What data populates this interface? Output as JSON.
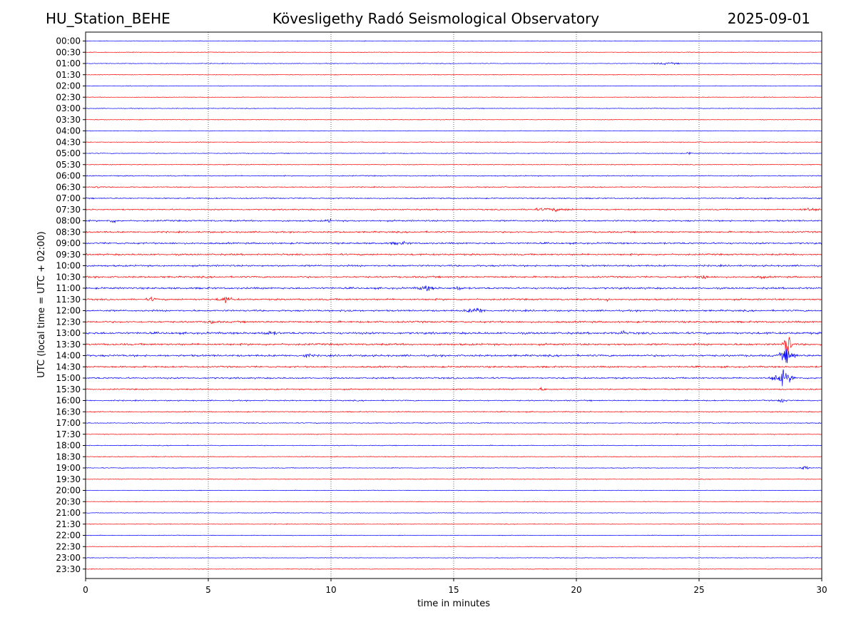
{
  "header": {
    "station": "HU_Station_BEHE",
    "observatory": "Kövesligethy Radó Seismological Observatory",
    "date": "2025-09-01"
  },
  "colors": {
    "trace_a": "#0000ff",
    "trace_b": "#ff0000",
    "axis": "#000000",
    "grid": "#000000"
  },
  "chart_data": {
    "type": "line",
    "title": "Kövesligethy Radó Seismological Observatory",
    "xlabel": "time in minutes",
    "ylabel": "UTC (local time = UTC + 02:00)",
    "xlim": [
      0,
      30
    ],
    "xticks": [
      0,
      5,
      10,
      15,
      20,
      25,
      30
    ],
    "grid": "vertical dotted at 5-minute ticks",
    "series_colors": "alternating blue (full hour) and red (half hour)",
    "rows": [
      "00:00",
      "00:30",
      "01:00",
      "01:30",
      "02:00",
      "02:30",
      "03:00",
      "03:30",
      "04:00",
      "04:30",
      "05:00",
      "05:30",
      "06:00",
      "06:30",
      "07:00",
      "07:30",
      "08:00",
      "08:30",
      "09:00",
      "09:30",
      "10:00",
      "10:30",
      "11:00",
      "11:30",
      "12:00",
      "12:30",
      "13:00",
      "13:30",
      "14:00",
      "14:30",
      "15:00",
      "15:30",
      "16:00",
      "16:30",
      "17:00",
      "17:30",
      "18:00",
      "18:30",
      "19:00",
      "19:30",
      "20:00",
      "20:30",
      "21:00",
      "21:30",
      "22:00",
      "22:30",
      "23:00",
      "23:30"
    ],
    "noise_level": [
      0.5,
      0.5,
      0.5,
      0.5,
      0.5,
      0.5,
      0.5,
      0.5,
      0.5,
      0.6,
      0.6,
      0.6,
      0.8,
      0.8,
      0.9,
      1.0,
      1.2,
      1.2,
      1.3,
      1.3,
      1.3,
      1.3,
      1.4,
      1.3,
      1.3,
      1.4,
      1.6,
      1.5,
      1.5,
      1.3,
      1.2,
      1.0,
      0.9,
      0.8,
      0.7,
      0.6,
      0.6,
      0.6,
      0.6,
      0.5,
      0.5,
      0.5,
      0.5,
      0.5,
      0.5,
      0.5,
      0.5,
      0.5
    ],
    "events": [
      {
        "row": "01:00",
        "minute": 23.7,
        "amplitude": 2,
        "duration": 1.0
      },
      {
        "row": "05:00",
        "minute": 24.6,
        "amplitude": 4,
        "duration": 0.15
      },
      {
        "row": "06:30",
        "minute": 0.5,
        "amplitude": 3,
        "duration": 0.2
      },
      {
        "row": "07:30",
        "minute": 19.0,
        "amplitude": 3,
        "duration": 1.5
      },
      {
        "row": "07:30",
        "minute": 29.5,
        "amplitude": 3,
        "duration": 0.8
      },
      {
        "row": "08:00",
        "minute": 1.1,
        "amplitude": 4,
        "duration": 0.3
      },
      {
        "row": "08:00",
        "minute": 9.9,
        "amplitude": 4,
        "duration": 0.2
      },
      {
        "row": "09:00",
        "minute": 12.8,
        "amplitude": 3,
        "duration": 0.6
      },
      {
        "row": "10:30",
        "minute": 25.2,
        "amplitude": 4,
        "duration": 0.4
      },
      {
        "row": "10:30",
        "minute": 27.6,
        "amplitude": 3,
        "duration": 0.3
      },
      {
        "row": "11:00",
        "minute": 13.9,
        "amplitude": 5,
        "duration": 0.6
      },
      {
        "row": "11:00",
        "minute": 15.2,
        "amplitude": 5,
        "duration": 0.3
      },
      {
        "row": "11:30",
        "minute": 2.7,
        "amplitude": 4,
        "duration": 0.3
      },
      {
        "row": "11:30",
        "minute": 5.7,
        "amplitude": 6,
        "duration": 0.5
      },
      {
        "row": "11:30",
        "minute": 21.3,
        "amplitude": 4,
        "duration": 0.2
      },
      {
        "row": "12:00",
        "minute": 10.7,
        "amplitude": 5,
        "duration": 0.3
      },
      {
        "row": "12:00",
        "minute": 15.9,
        "amplitude": 7,
        "duration": 0.6
      },
      {
        "row": "12:30",
        "minute": 5.2,
        "amplitude": 4,
        "duration": 0.3
      },
      {
        "row": "13:00",
        "minute": 7.5,
        "amplitude": 4,
        "duration": 0.5
      },
      {
        "row": "13:00",
        "minute": 21.9,
        "amplitude": 4,
        "duration": 0.3
      },
      {
        "row": "13:30",
        "minute": 28.6,
        "amplitude": 40,
        "duration": 0.25
      },
      {
        "row": "14:00",
        "minute": 9.0,
        "amplitude": 4,
        "duration": 0.4
      },
      {
        "row": "14:00",
        "minute": 28.6,
        "amplitude": 18,
        "duration": 0.5
      },
      {
        "row": "15:00",
        "minute": 28.4,
        "amplitude": 16,
        "duration": 0.7
      },
      {
        "row": "15:30",
        "minute": 18.6,
        "amplitude": 3,
        "duration": 0.3
      },
      {
        "row": "16:00",
        "minute": 28.4,
        "amplitude": 5,
        "duration": 0.3
      },
      {
        "row": "19:00",
        "minute": 29.3,
        "amplitude": 4,
        "duration": 0.3
      }
    ]
  }
}
